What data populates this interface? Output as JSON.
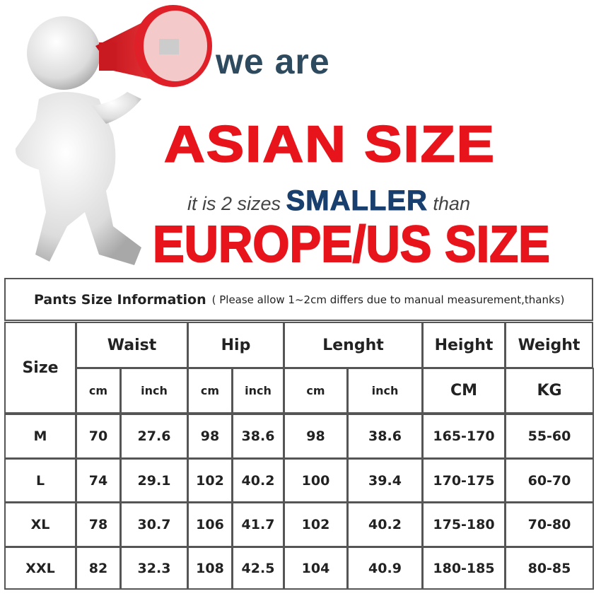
{
  "banner": {
    "line1": "we are",
    "line2": "ASIAN SIZE",
    "line3_prefix": "it is 2 sizes",
    "line3_emphasis": "SMALLER",
    "line3_suffix": "than",
    "line4": "EUROPE/US SIZE",
    "colors": {
      "red": "#e8141b",
      "navy": "#183f6e",
      "slate": "#2d4a5e"
    },
    "illustration": "white-figure-with-red-megaphone"
  },
  "table": {
    "title": "Pants Size Information",
    "note": "( Please allow 1~2cm differs due to manual measurement,thanks)",
    "headers": {
      "size": "Size",
      "waist": "Waist",
      "hip": "Hip",
      "length": "Lenght",
      "height": "Height",
      "weight": "Weight"
    },
    "units": [
      "cm",
      "inch",
      "cm",
      "inch",
      "cm",
      "inch",
      "CM",
      "KG"
    ],
    "rows": [
      [
        "M",
        "70",
        "27.6",
        "98",
        "38.6",
        "98",
        "38.6",
        "165-170",
        "55-60"
      ],
      [
        "L",
        "74",
        "29.1",
        "102",
        "40.2",
        "100",
        "39.4",
        "170-175",
        "60-70"
      ],
      [
        "XL",
        "78",
        "30.7",
        "106",
        "41.7",
        "102",
        "40.2",
        "175-180",
        "70-80"
      ],
      [
        "XXL",
        "82",
        "32.3",
        "108",
        "42.5",
        "104",
        "40.9",
        "180-185",
        "80-85"
      ]
    ]
  }
}
